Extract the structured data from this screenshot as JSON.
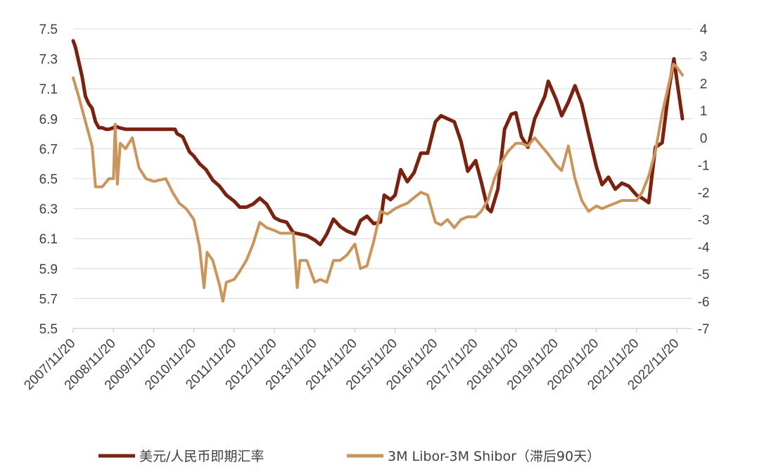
{
  "chart_data": {
    "type": "line",
    "title": "",
    "xlabel": "",
    "ylabel": "",
    "x_tick_labels": [
      "2007/11/20",
      "2008/11/20",
      "2009/11/20",
      "2010/11/20",
      "2011/11/20",
      "2012/11/20",
      "2013/11/20",
      "2014/11/20",
      "2015/11/20",
      "2016/11/20",
      "2017/11/20",
      "2018/11/20",
      "2019/11/20",
      "2020/11/20",
      "2021/11/20",
      "2022/11/20"
    ],
    "y_left_ticks": [
      "5.5",
      "5.7",
      "5.9",
      "6.1",
      "6.3",
      "6.5",
      "6.7",
      "6.9",
      "7.1",
      "7.3",
      "7.5"
    ],
    "y_left_range": [
      5.5,
      7.5
    ],
    "y_right_ticks": [
      "-7",
      "-6",
      "-5",
      "-4",
      "-3",
      "-2",
      "-1",
      "0",
      "1",
      "2",
      "3",
      "4"
    ],
    "y_right_range": [
      -7,
      4
    ],
    "grid": "horizontal",
    "legend_position": "bottom",
    "series": [
      {
        "name": "美元/人民币即期汇率",
        "axis": "left",
        "color": "#7B2110",
        "points": [
          [
            "2007-11-20",
            7.42
          ],
          [
            "2007-12-10",
            7.38
          ],
          [
            "2008-01-10",
            7.28
          ],
          [
            "2008-02-10",
            7.18
          ],
          [
            "2008-03-10",
            7.05
          ],
          [
            "2008-04-10",
            7.0
          ],
          [
            "2008-05-10",
            6.97
          ],
          [
            "2008-06-10",
            6.88
          ],
          [
            "2008-07-10",
            6.84
          ],
          [
            "2008-08-10",
            6.84
          ],
          [
            "2008-09-10",
            6.83
          ],
          [
            "2008-10-10",
            6.83
          ],
          [
            "2008-11-20",
            6.84
          ],
          [
            "2008-12-10",
            6.85
          ],
          [
            "2009-01-10",
            6.84
          ],
          [
            "2009-03-10",
            6.83
          ],
          [
            "2009-06-10",
            6.83
          ],
          [
            "2009-09-10",
            6.83
          ],
          [
            "2009-11-20",
            6.83
          ],
          [
            "2010-03-10",
            6.83
          ],
          [
            "2010-06-01",
            6.83
          ],
          [
            "2010-06-20",
            6.8
          ],
          [
            "2010-08-10",
            6.78
          ],
          [
            "2010-10-10",
            6.68
          ],
          [
            "2010-11-20",
            6.65
          ],
          [
            "2011-01-10",
            6.6
          ],
          [
            "2011-03-10",
            6.56
          ],
          [
            "2011-05-10",
            6.49
          ],
          [
            "2011-07-10",
            6.45
          ],
          [
            "2011-09-10",
            6.39
          ],
          [
            "2011-11-20",
            6.35
          ],
          [
            "2012-01-10",
            6.31
          ],
          [
            "2012-03-10",
            6.31
          ],
          [
            "2012-05-10",
            6.33
          ],
          [
            "2012-07-10",
            6.37
          ],
          [
            "2012-09-10",
            6.33
          ],
          [
            "2012-11-20",
            6.24
          ],
          [
            "2013-01-10",
            6.22
          ],
          [
            "2013-03-10",
            6.21
          ],
          [
            "2013-05-10",
            6.14
          ],
          [
            "2013-07-10",
            6.13
          ],
          [
            "2013-09-10",
            6.12
          ],
          [
            "2013-11-20",
            6.09
          ],
          [
            "2014-01-10",
            6.06
          ],
          [
            "2014-03-10",
            6.13
          ],
          [
            "2014-05-10",
            6.23
          ],
          [
            "2014-07-10",
            6.18
          ],
          [
            "2014-09-10",
            6.15
          ],
          [
            "2014-11-20",
            6.13
          ],
          [
            "2015-01-10",
            6.22
          ],
          [
            "2015-03-10",
            6.25
          ],
          [
            "2015-05-10",
            6.2
          ],
          [
            "2015-07-10",
            6.21
          ],
          [
            "2015-08-13",
            6.39
          ],
          [
            "2015-10-10",
            6.36
          ],
          [
            "2015-11-20",
            6.39
          ],
          [
            "2016-01-10",
            6.56
          ],
          [
            "2016-03-10",
            6.48
          ],
          [
            "2016-05-10",
            6.54
          ],
          [
            "2016-07-10",
            6.67
          ],
          [
            "2016-09-10",
            6.67
          ],
          [
            "2016-11-20",
            6.88
          ],
          [
            "2017-01-10",
            6.92
          ],
          [
            "2017-03-10",
            6.9
          ],
          [
            "2017-05-10",
            6.88
          ],
          [
            "2017-07-10",
            6.75
          ],
          [
            "2017-09-10",
            6.55
          ],
          [
            "2017-11-20",
            6.62
          ],
          [
            "2018-01-10",
            6.48
          ],
          [
            "2018-03-10",
            6.3
          ],
          [
            "2018-04-10",
            6.28
          ],
          [
            "2018-06-10",
            6.43
          ],
          [
            "2018-08-10",
            6.83
          ],
          [
            "2018-10-10",
            6.93
          ],
          [
            "2018-11-20",
            6.94
          ],
          [
            "2019-01-10",
            6.78
          ],
          [
            "2019-03-10",
            6.71
          ],
          [
            "2019-05-10",
            6.9
          ],
          [
            "2019-08-10",
            7.05
          ],
          [
            "2019-09-10",
            7.15
          ],
          [
            "2019-11-20",
            7.03
          ],
          [
            "2020-01-10",
            6.92
          ],
          [
            "2020-03-10",
            7.01
          ],
          [
            "2020-05-10",
            7.12
          ],
          [
            "2020-07-10",
            7.0
          ],
          [
            "2020-09-10",
            6.8
          ],
          [
            "2020-11-20",
            6.58
          ],
          [
            "2021-01-10",
            6.46
          ],
          [
            "2021-03-10",
            6.51
          ],
          [
            "2021-05-10",
            6.43
          ],
          [
            "2021-07-10",
            6.47
          ],
          [
            "2021-09-10",
            6.45
          ],
          [
            "2021-11-20",
            6.39
          ],
          [
            "2022-01-10",
            6.37
          ],
          [
            "2022-03-10",
            6.34
          ],
          [
            "2022-05-10",
            6.71
          ],
          [
            "2022-07-10",
            6.74
          ],
          [
            "2022-09-10",
            7.1
          ],
          [
            "2022-10-25",
            7.3
          ],
          [
            "2022-11-20",
            7.16
          ],
          [
            "2023-01-10",
            6.9
          ]
        ]
      },
      {
        "name": "3M Libor-3M Shibor（滞后90天）",
        "axis": "right",
        "color": "#C9955A",
        "points": [
          [
            "2007-11-20",
            2.2
          ],
          [
            "2008-01-10",
            1.5
          ],
          [
            "2008-03-10",
            0.6
          ],
          [
            "2008-05-10",
            -0.3
          ],
          [
            "2008-06-10",
            -1.8
          ],
          [
            "2008-08-10",
            -1.8
          ],
          [
            "2008-10-10",
            -1.5
          ],
          [
            "2008-11-20",
            -1.5
          ],
          [
            "2008-12-05",
            0.5
          ],
          [
            "2008-12-25",
            -1.7
          ],
          [
            "2009-01-20",
            -0.2
          ],
          [
            "2009-03-10",
            -0.4
          ],
          [
            "2009-05-10",
            0.0
          ],
          [
            "2009-07-10",
            -1.1
          ],
          [
            "2009-09-10",
            -1.5
          ],
          [
            "2009-11-20",
            -1.6
          ],
          [
            "2010-03-10",
            -1.5
          ],
          [
            "2010-05-10",
            -2.0
          ],
          [
            "2010-07-10",
            -2.4
          ],
          [
            "2010-09-10",
            -2.6
          ],
          [
            "2010-11-20",
            -3.0
          ],
          [
            "2011-01-10",
            -4.0
          ],
          [
            "2011-02-20",
            -5.5
          ],
          [
            "2011-03-20",
            -4.2
          ],
          [
            "2011-05-10",
            -4.5
          ],
          [
            "2011-07-10",
            -5.4
          ],
          [
            "2011-08-10",
            -6.0
          ],
          [
            "2011-09-10",
            -5.3
          ],
          [
            "2011-11-20",
            -5.2
          ],
          [
            "2012-01-10",
            -4.9
          ],
          [
            "2012-03-10",
            -4.5
          ],
          [
            "2012-05-10",
            -3.9
          ],
          [
            "2012-07-10",
            -3.1
          ],
          [
            "2012-09-10",
            -3.3
          ],
          [
            "2012-11-20",
            -3.4
          ],
          [
            "2013-01-10",
            -3.5
          ],
          [
            "2013-03-10",
            -3.5
          ],
          [
            "2013-05-10",
            -3.5
          ],
          [
            "2013-06-15",
            -5.5
          ],
          [
            "2013-07-10",
            -4.5
          ],
          [
            "2013-09-10",
            -4.5
          ],
          [
            "2013-11-20",
            -5.3
          ],
          [
            "2014-01-10",
            -5.2
          ],
          [
            "2014-03-10",
            -5.3
          ],
          [
            "2014-05-10",
            -4.5
          ],
          [
            "2014-07-10",
            -4.5
          ],
          [
            "2014-09-10",
            -4.3
          ],
          [
            "2014-11-20",
            -3.9
          ],
          [
            "2015-01-10",
            -4.8
          ],
          [
            "2015-03-10",
            -4.7
          ],
          [
            "2015-05-10",
            -3.8
          ],
          [
            "2015-07-10",
            -2.7
          ],
          [
            "2015-09-10",
            -2.8
          ],
          [
            "2015-11-20",
            -2.6
          ],
          [
            "2016-01-10",
            -2.5
          ],
          [
            "2016-03-10",
            -2.4
          ],
          [
            "2016-05-10",
            -2.2
          ],
          [
            "2016-07-10",
            -2.0
          ],
          [
            "2016-09-10",
            -2.1
          ],
          [
            "2016-11-20",
            -3.1
          ],
          [
            "2017-01-10",
            -3.2
          ],
          [
            "2017-03-10",
            -3.0
          ],
          [
            "2017-05-10",
            -3.3
          ],
          [
            "2017-07-10",
            -3.0
          ],
          [
            "2017-09-10",
            -2.9
          ],
          [
            "2017-11-20",
            -2.9
          ],
          [
            "2018-01-10",
            -2.7
          ],
          [
            "2018-03-10",
            -2.3
          ],
          [
            "2018-05-10",
            -1.5
          ],
          [
            "2018-07-10",
            -0.9
          ],
          [
            "2018-09-10",
            -0.5
          ],
          [
            "2018-11-20",
            -0.2
          ],
          [
            "2019-01-10",
            -0.2
          ],
          [
            "2019-03-10",
            -0.3
          ],
          [
            "2019-05-10",
            0.0
          ],
          [
            "2019-07-10",
            -0.3
          ],
          [
            "2019-09-10",
            -0.6
          ],
          [
            "2019-11-20",
            -1.0
          ],
          [
            "2020-01-10",
            -1.2
          ],
          [
            "2020-03-10",
            -0.3
          ],
          [
            "2020-05-10",
            -1.5
          ],
          [
            "2020-07-10",
            -2.3
          ],
          [
            "2020-09-10",
            -2.7
          ],
          [
            "2020-11-20",
            -2.5
          ],
          [
            "2021-01-10",
            -2.6
          ],
          [
            "2021-03-10",
            -2.5
          ],
          [
            "2021-05-10",
            -2.4
          ],
          [
            "2021-07-10",
            -2.3
          ],
          [
            "2021-09-10",
            -2.3
          ],
          [
            "2021-11-20",
            -2.3
          ],
          [
            "2022-01-10",
            -2.0
          ],
          [
            "2022-03-10",
            -1.4
          ],
          [
            "2022-05-10",
            -0.5
          ],
          [
            "2022-07-10",
            0.9
          ],
          [
            "2022-09-10",
            2.0
          ],
          [
            "2022-10-20",
            2.7
          ],
          [
            "2022-11-20",
            2.6
          ],
          [
            "2023-01-10",
            2.3
          ]
        ]
      }
    ]
  }
}
